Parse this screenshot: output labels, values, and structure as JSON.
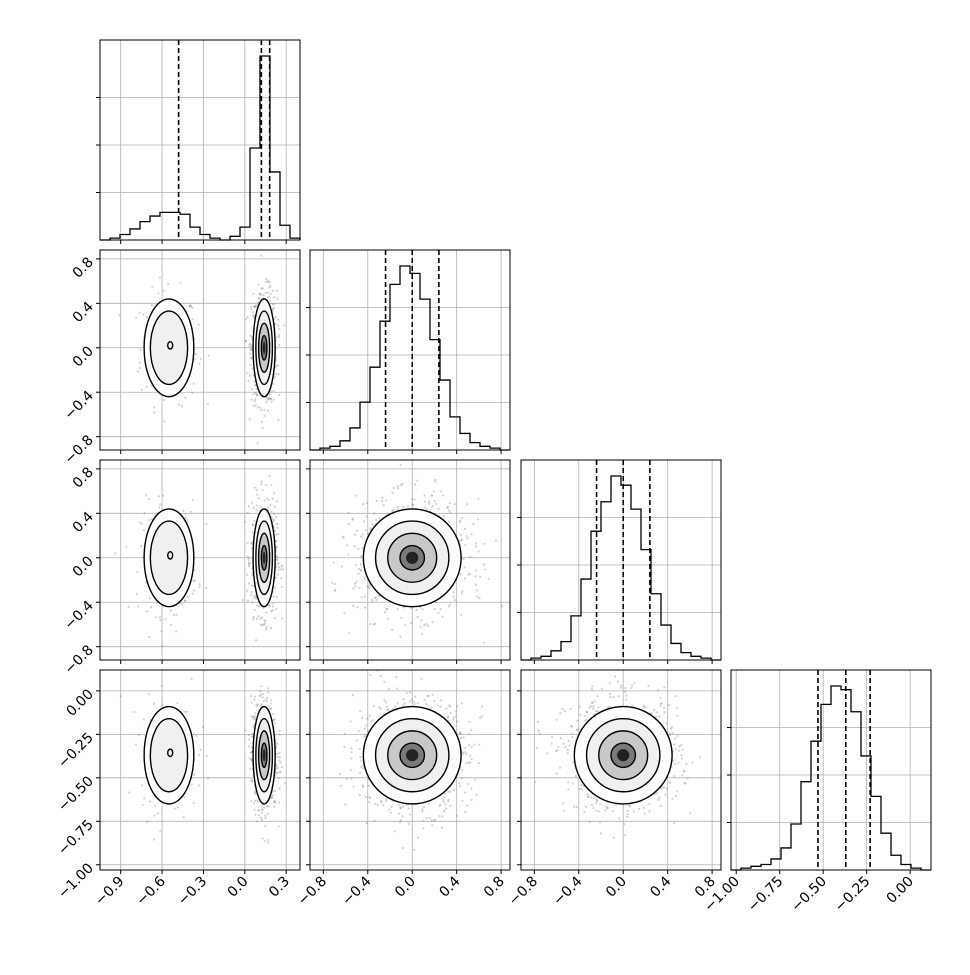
{
  "chart_data": {
    "type": "corner",
    "grid": true,
    "params": [
      {
        "ticks": [
          -0.9,
          -0.6,
          -0.3,
          0.0,
          0.3
        ],
        "range": [
          -1.05,
          0.4
        ],
        "quantiles": [
          -0.48,
          0.12,
          0.18
        ],
        "hist_edges": [
          -1.05,
          0.4,
          20
        ],
        "hist_values": [
          0,
          1,
          3,
          6,
          10,
          13,
          15,
          15,
          14,
          7,
          3,
          1,
          0,
          2,
          7,
          50,
          100,
          37,
          8,
          1
        ]
      },
      {
        "ticks": [
          -0.8,
          -0.4,
          0.0,
          0.4,
          0.8
        ],
        "range": [
          -0.92,
          0.88
        ],
        "quantiles": [
          -0.24,
          0.0,
          0.24
        ],
        "hist_edges": [
          -0.92,
          0.88,
          20
        ],
        "hist_values": [
          0,
          1,
          2,
          5,
          12,
          26,
          45,
          70,
          90,
          100,
          96,
          82,
          60,
          38,
          18,
          9,
          4,
          2,
          1,
          0
        ]
      },
      {
        "ticks": [
          -0.8,
          -0.4,
          0.0,
          0.4,
          0.8
        ],
        "range": [
          -0.92,
          0.88
        ],
        "quantiles": [
          -0.24,
          0.0,
          0.24
        ],
        "hist_edges": [
          -0.92,
          0.88,
          20
        ],
        "hist_values": [
          0,
          1,
          2,
          5,
          10,
          24,
          44,
          70,
          86,
          100,
          95,
          82,
          60,
          36,
          19,
          9,
          4,
          2,
          1,
          0
        ]
      },
      {
        "ticks": [
          -1.0,
          -0.75,
          -0.5,
          -0.25,
          0.0
        ],
        "range": [
          -1.03,
          0.12
        ],
        "quantiles": [
          -0.53,
          -0.37,
          -0.23
        ],
        "hist_edges": [
          -1.03,
          0.12,
          20
        ],
        "hist_values": [
          0,
          1,
          2,
          3,
          6,
          12,
          25,
          48,
          70,
          90,
          100,
          98,
          86,
          62,
          40,
          20,
          8,
          3,
          1,
          0
        ]
      }
    ],
    "tick_labels": {
      "p0": [
        "−0.9",
        "−0.6",
        "−0.3",
        "0.0",
        "0.3"
      ],
      "p1": [
        "−0.8",
        "−0.4",
        "0.0",
        "0.4",
        "0.8"
      ],
      "p2": [
        "−0.8",
        "−0.4",
        "0.0",
        "0.4",
        "0.8"
      ],
      "p3": [
        "−1.00",
        "−0.75",
        "−0.50",
        "−0.25",
        "0.00"
      ]
    },
    "pair_modes": [
      {
        "x": 0,
        "y": 1,
        "modes": [
          {
            "cx": -0.55,
            "cy": 0.0,
            "sx": 0.09,
            "sy": 0.22,
            "w": 0.25
          },
          {
            "cx": 0.14,
            "cy": 0.0,
            "sx": 0.04,
            "sy": 0.22,
            "w": 0.75
          }
        ]
      },
      {
        "x": 0,
        "y": 2,
        "modes": [
          {
            "cx": -0.55,
            "cy": 0.0,
            "sx": 0.09,
            "sy": 0.22,
            "w": 0.25
          },
          {
            "cx": 0.14,
            "cy": 0.0,
            "sx": 0.04,
            "sy": 0.22,
            "w": 0.75
          }
        ]
      },
      {
        "x": 0,
        "y": 3,
        "modes": [
          {
            "cx": -0.55,
            "cy": -0.37,
            "sx": 0.09,
            "sy": 0.14,
            "w": 0.25
          },
          {
            "cx": 0.14,
            "cy": -0.37,
            "sx": 0.04,
            "sy": 0.14,
            "w": 0.75
          }
        ]
      },
      {
        "x": 1,
        "y": 2,
        "modes": [
          {
            "cx": 0.0,
            "cy": 0.0,
            "sx": 0.22,
            "sy": 0.22,
            "w": 1.0
          }
        ]
      },
      {
        "x": 1,
        "y": 3,
        "modes": [
          {
            "cx": 0.0,
            "cy": -0.37,
            "sx": 0.22,
            "sy": 0.14,
            "w": 1.0
          }
        ]
      },
      {
        "x": 2,
        "y": 3,
        "modes": [
          {
            "cx": 0.0,
            "cy": -0.37,
            "sx": 0.22,
            "sy": 0.14,
            "w": 1.0
          }
        ]
      }
    ]
  }
}
